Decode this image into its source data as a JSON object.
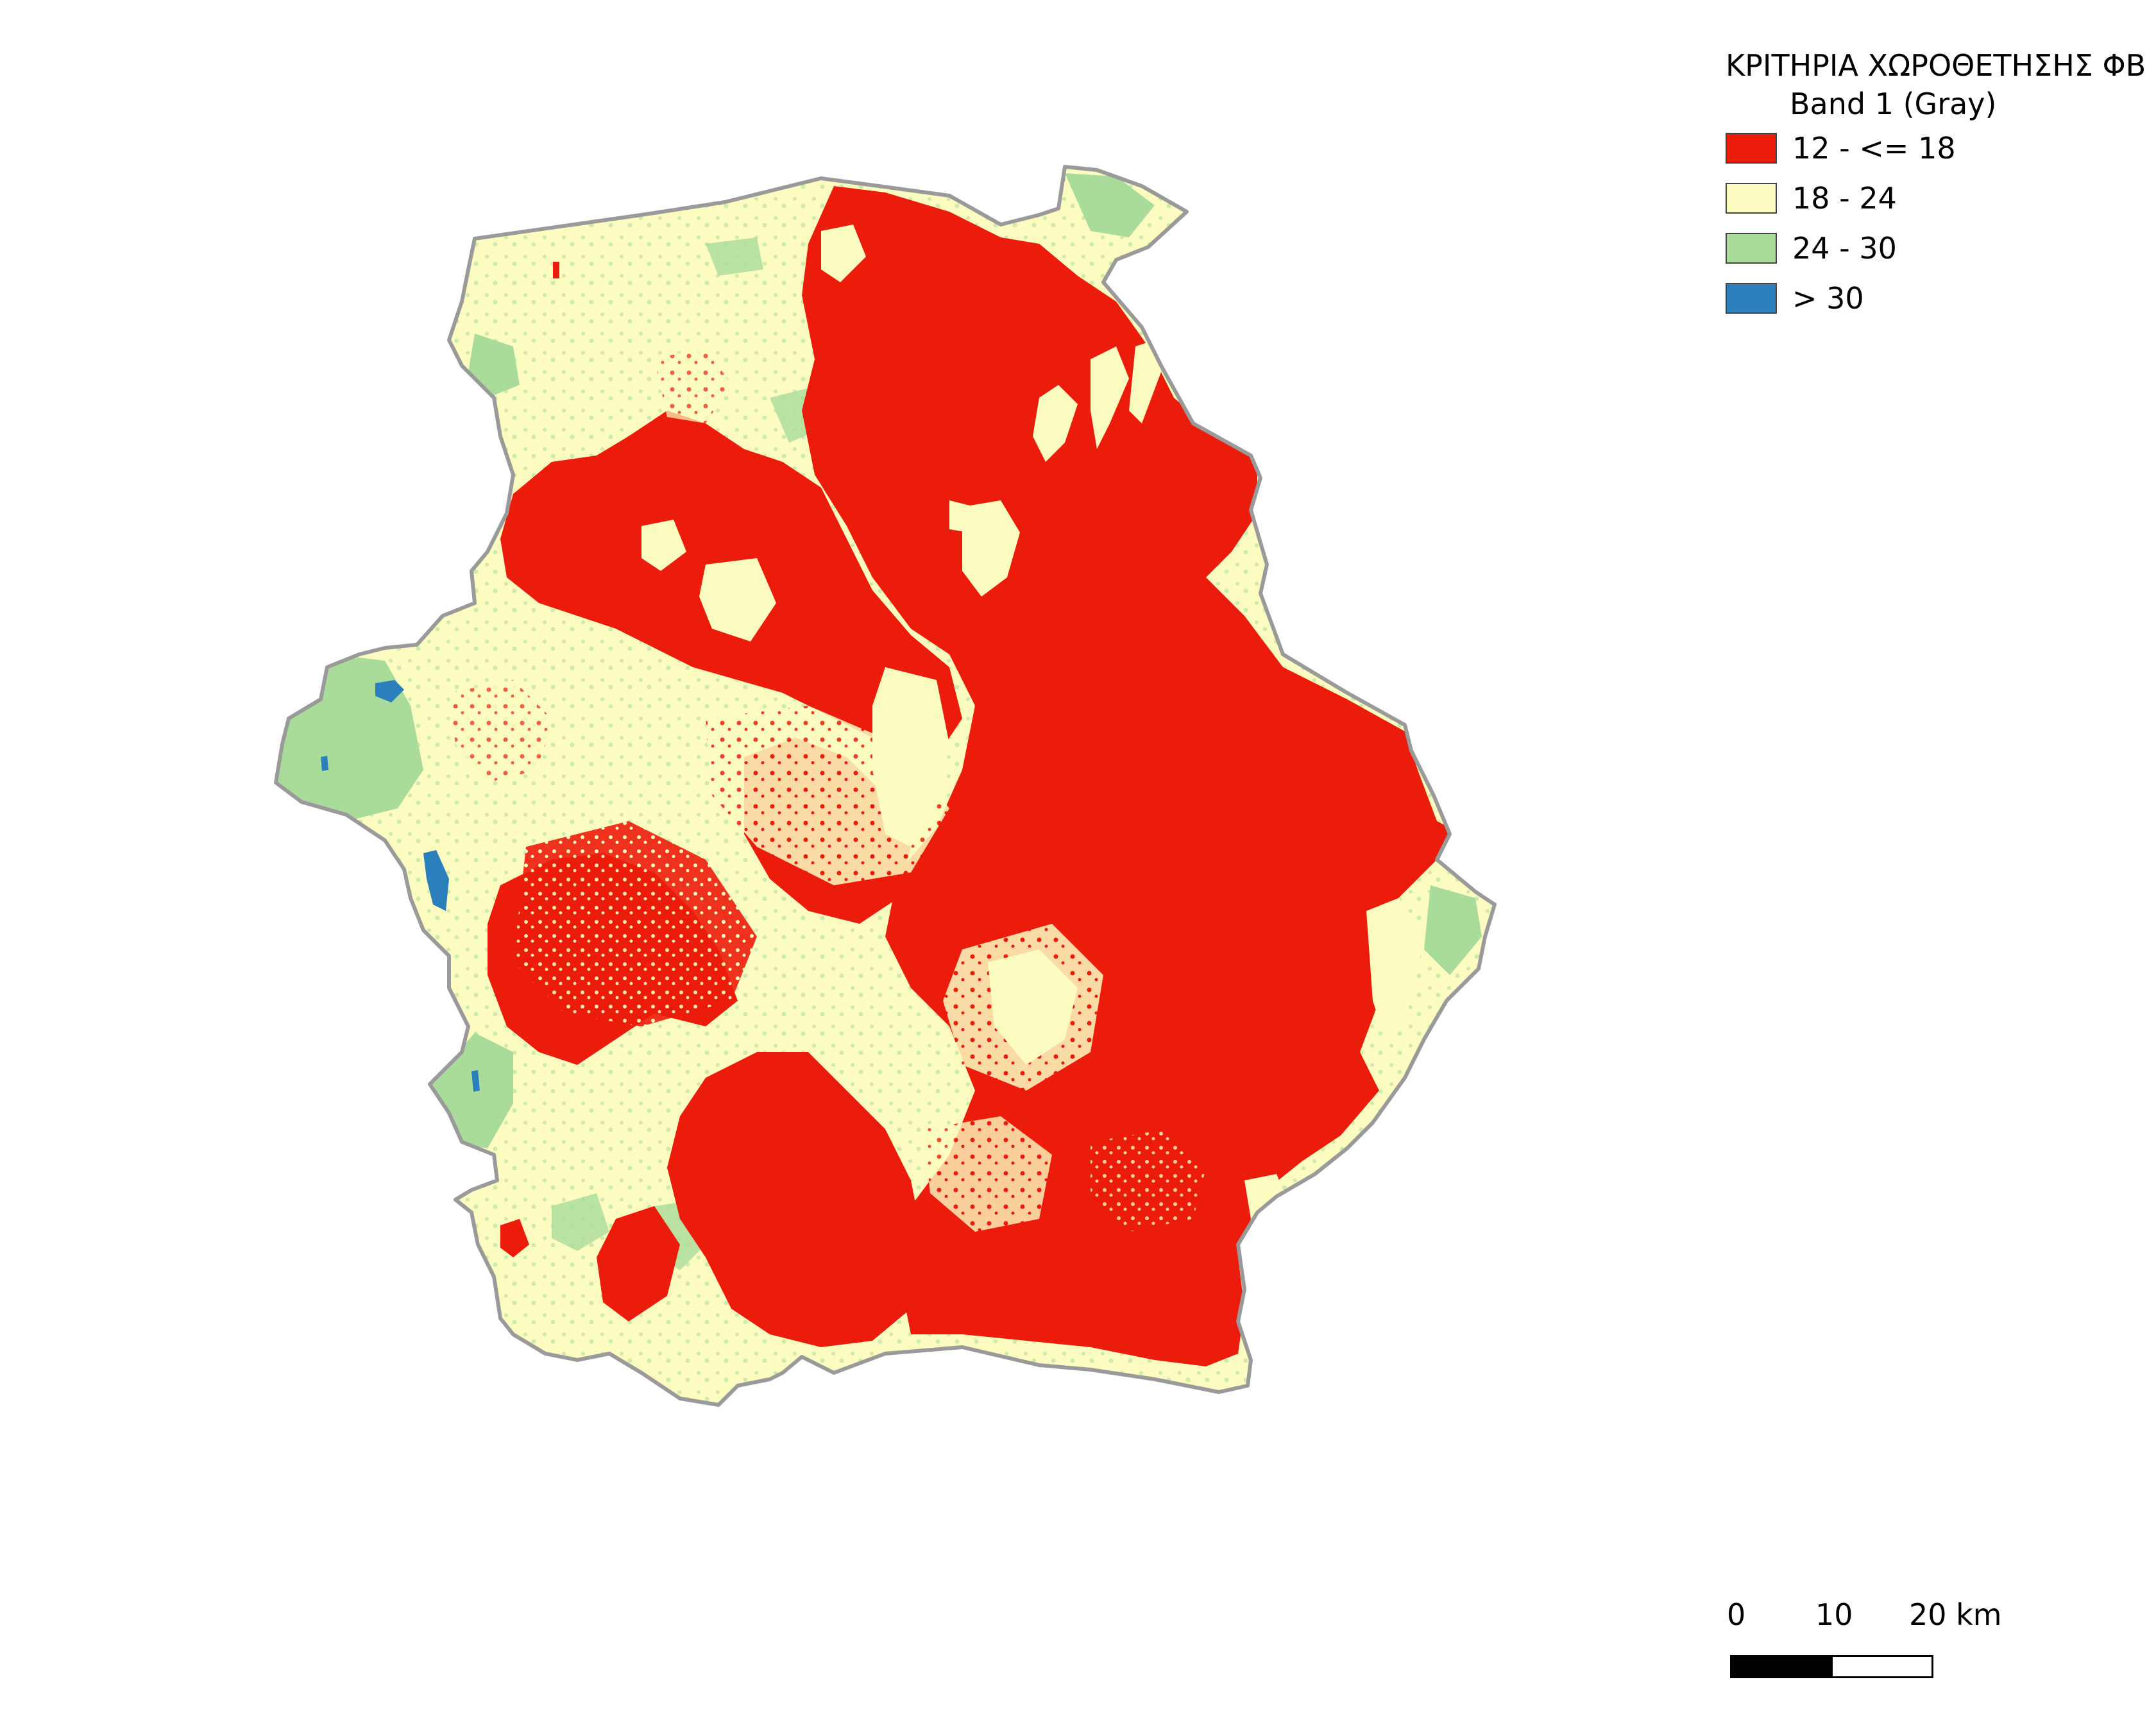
{
  "legend": {
    "title": "ΚΡΙΤΗΡΙΑ ΧΩΡΟΘΕΤΗΣΗΣ ΦΒ",
    "band": "Band 1 (Gray)",
    "classes": [
      {
        "label": "12 - <= 18",
        "color": "#ec1c0c"
      },
      {
        "label": "18 - 24",
        "color": "#fdfcc0"
      },
      {
        "label": "24 - 30",
        "color": "#a9dc9b"
      },
      {
        "label": "> 30",
        "color": "#2b80bc"
      }
    ]
  },
  "scalebar": {
    "ticks": [
      "0",
      "10",
      "20 km"
    ]
  },
  "colors": {
    "boundary": "#9a9a9a",
    "red": "#ec1c0c",
    "yellow": "#fdfcc0",
    "green": "#a9dc9b",
    "blue": "#2b80bc"
  }
}
